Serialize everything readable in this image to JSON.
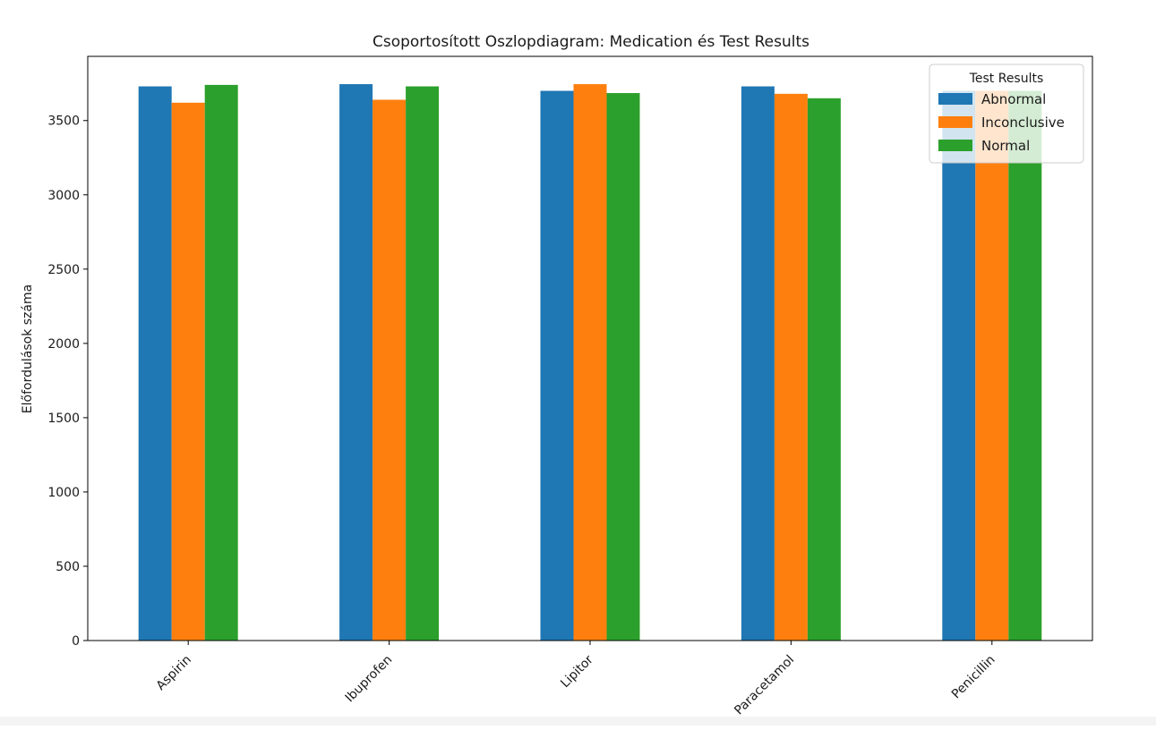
{
  "chart_data": {
    "type": "bar",
    "title": "Csoportosított Oszlopdiagram: Medication és Test Results",
    "xlabel": "",
    "ylabel": "Előfordulások száma",
    "categories": [
      "Aspirin",
      "Ibuprofen",
      "Lipitor",
      "Paracetamol",
      "Penicillin"
    ],
    "series": [
      {
        "name": "Abnormal",
        "color": "#1f77b4",
        "values": [
          3730,
          3745,
          3700,
          3730,
          3700
        ]
      },
      {
        "name": "Inconclusive",
        "color": "#ff7f0e",
        "values": [
          3620,
          3640,
          3745,
          3680,
          3700
        ]
      },
      {
        "name": "Normal",
        "color": "#2ca02c",
        "values": [
          3740,
          3730,
          3685,
          3650,
          3700
        ]
      }
    ],
    "ylim": [
      0,
      3932
    ],
    "yticks": [
      0,
      500,
      1000,
      1500,
      2000,
      2500,
      3000,
      3500
    ],
    "legend": {
      "title": "Test Results",
      "placement": "top-right"
    },
    "grid": false
  }
}
